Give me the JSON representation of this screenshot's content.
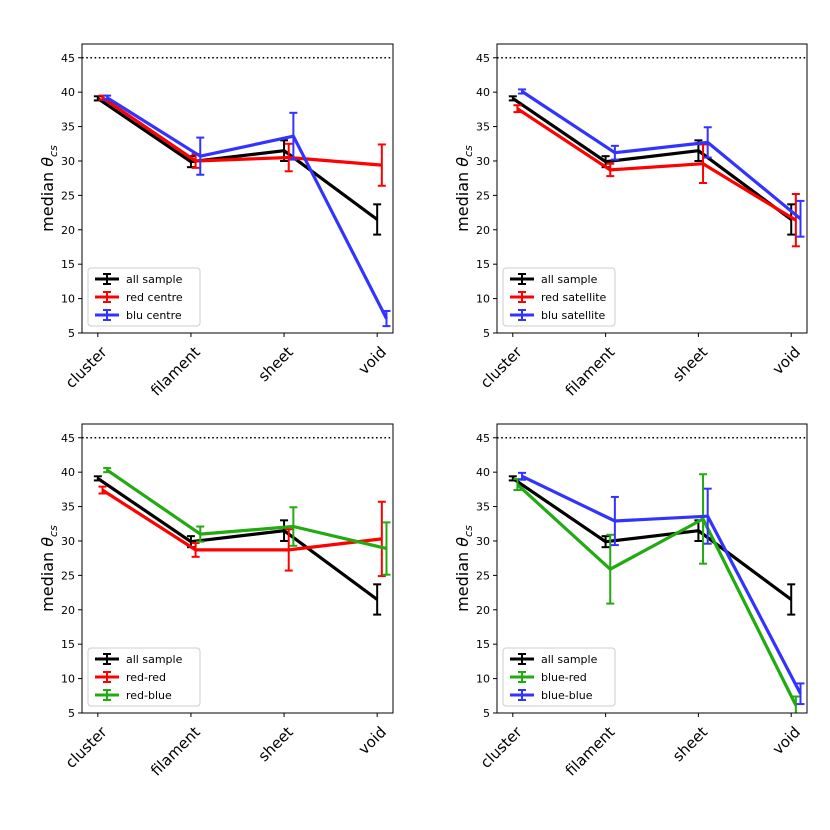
{
  "chart_data": [
    {
      "type": "line",
      "ylabel_prefix": "median ",
      "ylabel_symbol": "θ",
      "ylabel_sub": "cs",
      "categories": [
        "cluster",
        "filament",
        "sheet",
        "void"
      ],
      "ylim": [
        5,
        47
      ],
      "yticks": [
        5,
        10,
        15,
        20,
        25,
        30,
        35,
        40,
        45
      ],
      "reference_line": 45,
      "legend_loc": "lower-left",
      "series": [
        {
          "name": "all sample",
          "color": "#000000",
          "offset": 0.0,
          "values": [
            39.1,
            29.9,
            31.5,
            21.5
          ],
          "errors": [
            0.3,
            0.8,
            1.5,
            2.2
          ]
        },
        {
          "name": "red centre",
          "color": "#ff0000",
          "offset": 0.05,
          "values": [
            39.2,
            30.0,
            30.5,
            29.4
          ],
          "errors": [
            0.3,
            1.0,
            2.0,
            3.0
          ]
        },
        {
          "name": "blu centre",
          "color": "#3333ff",
          "offset": 0.1,
          "values": [
            39.2,
            30.7,
            33.6,
            7.1
          ],
          "errors": [
            0.3,
            2.7,
            3.4,
            1.1
          ]
        }
      ]
    },
    {
      "type": "line",
      "ylabel_prefix": "median ",
      "ylabel_symbol": "θ",
      "ylabel_sub": "cs",
      "categories": [
        "cluster",
        "filament",
        "sheet",
        "void"
      ],
      "ylim": [
        5,
        47
      ],
      "yticks": [
        5,
        10,
        15,
        20,
        25,
        30,
        35,
        40,
        45
      ],
      "reference_line": 45,
      "legend_loc": "lower-left",
      "series": [
        {
          "name": "all sample",
          "color": "#000000",
          "offset": 0.0,
          "values": [
            39.1,
            29.9,
            31.5,
            21.5
          ],
          "errors": [
            0.3,
            0.8,
            1.5,
            2.2
          ]
        },
        {
          "name": "red satellite",
          "color": "#ff0000",
          "offset": 0.05,
          "values": [
            37.6,
            28.7,
            29.6,
            21.4
          ],
          "errors": [
            0.5,
            0.9,
            2.8,
            3.8
          ]
        },
        {
          "name": "blu satellite",
          "color": "#3333ff",
          "offset": 0.1,
          "values": [
            40.1,
            31.2,
            32.7,
            21.6
          ],
          "errors": [
            0.3,
            1.0,
            2.2,
            2.6
          ]
        }
      ]
    },
    {
      "type": "line",
      "ylabel_prefix": "median ",
      "ylabel_symbol": "θ",
      "ylabel_sub": "cs",
      "categories": [
        "cluster",
        "filament",
        "sheet",
        "void"
      ],
      "ylim": [
        5,
        47
      ],
      "yticks": [
        5,
        10,
        15,
        20,
        25,
        30,
        35,
        40,
        45
      ],
      "reference_line": 45,
      "legend_loc": "lower-left",
      "series": [
        {
          "name": "all sample",
          "color": "#000000",
          "offset": 0.0,
          "values": [
            39.1,
            29.9,
            31.5,
            21.5
          ],
          "errors": [
            0.3,
            0.8,
            1.5,
            2.2
          ]
        },
        {
          "name": "red-red",
          "color": "#ff0000",
          "offset": 0.05,
          "values": [
            37.4,
            28.7,
            28.7,
            30.3
          ],
          "errors": [
            0.5,
            1.0,
            3.0,
            5.4
          ]
        },
        {
          "name": "red-blue",
          "color": "#22aa11",
          "offset": 0.1,
          "values": [
            40.3,
            31.0,
            32.1,
            28.9
          ],
          "errors": [
            0.3,
            1.1,
            2.8,
            3.8
          ]
        }
      ]
    },
    {
      "type": "line",
      "ylabel_prefix": "median ",
      "ylabel_symbol": "θ",
      "ylabel_sub": "cs",
      "categories": [
        "cluster",
        "filament",
        "sheet",
        "void"
      ],
      "ylim": [
        5,
        47
      ],
      "yticks": [
        5,
        10,
        15,
        20,
        25,
        30,
        35,
        40,
        45
      ],
      "reference_line": 45,
      "legend_loc": "lower-left",
      "series": [
        {
          "name": "all sample",
          "color": "#000000",
          "offset": 0.0,
          "values": [
            39.1,
            29.9,
            31.5,
            21.5
          ],
          "errors": [
            0.3,
            0.8,
            1.5,
            2.2
          ]
        },
        {
          "name": "blue-red",
          "color": "#22aa11",
          "offset": 0.05,
          "values": [
            38.2,
            25.9,
            33.2,
            6.1
          ],
          "errors": [
            0.8,
            5.0,
            6.5,
            1.3
          ]
        },
        {
          "name": "blue-blue",
          "color": "#3333ff",
          "offset": 0.1,
          "values": [
            39.4,
            32.9,
            33.6,
            7.8
          ],
          "errors": [
            0.5,
            3.5,
            4.0,
            1.5
          ]
        }
      ]
    }
  ]
}
